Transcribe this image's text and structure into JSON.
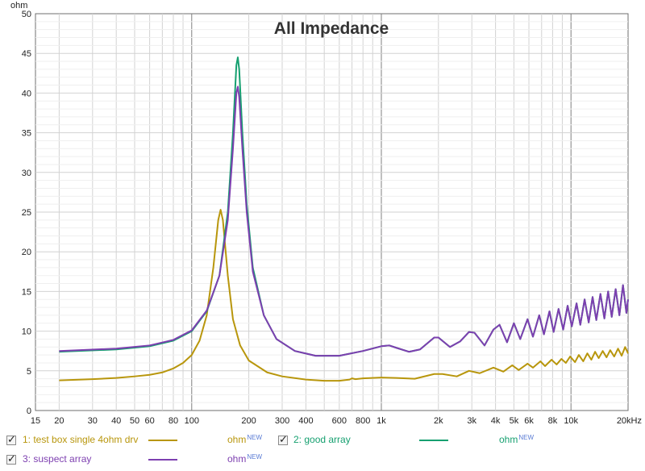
{
  "chart_data": {
    "type": "line",
    "title": "All Impedance",
    "ylabel": "ohm",
    "x_scale": "log",
    "xlim": [
      15,
      20000
    ],
    "ylim": [
      0,
      50
    ],
    "grid": true,
    "y_ticks": [
      "0",
      "5",
      "10",
      "15",
      "20",
      "25",
      "30",
      "35",
      "40",
      "45",
      "50"
    ],
    "x_ticks": [
      {
        "v": 15,
        "label": "15"
      },
      {
        "v": 20,
        "label": "20"
      },
      {
        "v": 30,
        "label": "30"
      },
      {
        "v": 40,
        "label": "40"
      },
      {
        "v": 50,
        "label": "50"
      },
      {
        "v": 60,
        "label": "60"
      },
      {
        "v": 80,
        "label": "80"
      },
      {
        "v": 100,
        "label": "100"
      },
      {
        "v": 200,
        "label": "200"
      },
      {
        "v": 300,
        "label": "300"
      },
      {
        "v": 400,
        "label": "400"
      },
      {
        "v": 600,
        "label": "600"
      },
      {
        "v": 800,
        "label": "800"
      },
      {
        "v": 1000,
        "label": "1k"
      },
      {
        "v": 2000,
        "label": "2k"
      },
      {
        "v": 3000,
        "label": "3k"
      },
      {
        "v": 4000,
        "label": "4k"
      },
      {
        "v": 5000,
        "label": "5k"
      },
      {
        "v": 6000,
        "label": "6k"
      },
      {
        "v": 8000,
        "label": "8k"
      },
      {
        "v": 10000,
        "label": "10k"
      },
      {
        "v": 20000,
        "label": "20kHz"
      }
    ],
    "series": [
      {
        "name": "1: test box single 4ohm drv",
        "color": "#b8960c",
        "unit": "ohm",
        "badge": "NEW",
        "points": [
          [
            20,
            3.8
          ],
          [
            30,
            3.95
          ],
          [
            40,
            4.1
          ],
          [
            50,
            4.3
          ],
          [
            60,
            4.5
          ],
          [
            70,
            4.8
          ],
          [
            80,
            5.3
          ],
          [
            90,
            6.0
          ],
          [
            100,
            7.0
          ],
          [
            110,
            8.8
          ],
          [
            120,
            12.0
          ],
          [
            130,
            18.0
          ],
          [
            138,
            24.0
          ],
          [
            142,
            25.3
          ],
          [
            146,
            24.0
          ],
          [
            155,
            17.0
          ],
          [
            165,
            11.5
          ],
          [
            180,
            8.2
          ],
          [
            200,
            6.3
          ],
          [
            250,
            4.8
          ],
          [
            300,
            4.3
          ],
          [
            400,
            3.9
          ],
          [
            500,
            3.75
          ],
          [
            600,
            3.75
          ],
          [
            680,
            3.9
          ],
          [
            700,
            4.05
          ],
          [
            730,
            3.95
          ],
          [
            800,
            4.05
          ],
          [
            1000,
            4.15
          ],
          [
            1200,
            4.1
          ],
          [
            1500,
            4.0
          ],
          [
            1900,
            4.6
          ],
          [
            2100,
            4.6
          ],
          [
            2500,
            4.3
          ],
          [
            2900,
            5.0
          ],
          [
            3300,
            4.7
          ],
          [
            3900,
            5.4
          ],
          [
            4400,
            4.9
          ],
          [
            4900,
            5.7
          ],
          [
            5300,
            5.1
          ],
          [
            5900,
            5.9
          ],
          [
            6300,
            5.4
          ],
          [
            6900,
            6.2
          ],
          [
            7300,
            5.6
          ],
          [
            7900,
            6.4
          ],
          [
            8400,
            5.8
          ],
          [
            8900,
            6.5
          ],
          [
            9400,
            6.0
          ],
          [
            9900,
            6.8
          ],
          [
            10500,
            6.1
          ],
          [
            11000,
            7.0
          ],
          [
            11600,
            6.2
          ],
          [
            12200,
            7.2
          ],
          [
            12800,
            6.4
          ],
          [
            13400,
            7.4
          ],
          [
            14000,
            6.6
          ],
          [
            14700,
            7.5
          ],
          [
            15400,
            6.7
          ],
          [
            16100,
            7.6
          ],
          [
            16900,
            6.8
          ],
          [
            17700,
            7.8
          ],
          [
            18500,
            6.9
          ],
          [
            19300,
            8.0
          ],
          [
            20000,
            7.2
          ]
        ]
      },
      {
        "name": "2: good array",
        "color": "#16a070",
        "unit": "ohm",
        "badge": "NEW",
        "points": [
          [
            20,
            7.4
          ],
          [
            40,
            7.7
          ],
          [
            60,
            8.1
          ],
          [
            80,
            8.8
          ],
          [
            100,
            10.0
          ],
          [
            120,
            12.5
          ],
          [
            140,
            17.0
          ],
          [
            155,
            25.0
          ],
          [
            165,
            35.0
          ],
          [
            172,
            43.5
          ],
          [
            175,
            44.5
          ],
          [
            178,
            43.0
          ],
          [
            185,
            35.0
          ],
          [
            195,
            26.0
          ],
          [
            210,
            18.0
          ],
          [
            240,
            12.0
          ],
          [
            280,
            9.0
          ],
          [
            350,
            7.5
          ],
          [
            450,
            6.9
          ],
          [
            600,
            6.9
          ],
          [
            800,
            7.5
          ],
          [
            1000,
            8.1
          ],
          [
            1100,
            8.2
          ],
          [
            1200,
            7.9
          ],
          [
            1400,
            7.4
          ],
          [
            1600,
            7.7
          ],
          [
            1900,
            9.2
          ],
          [
            2000,
            9.2
          ],
          [
            2300,
            8.0
          ],
          [
            2600,
            8.7
          ],
          [
            2900,
            9.9
          ],
          [
            3100,
            9.8
          ],
          [
            3500,
            8.2
          ],
          [
            3900,
            10.2
          ],
          [
            4200,
            10.8
          ],
          [
            4600,
            8.6
          ],
          [
            5000,
            11.0
          ],
          [
            5400,
            9.0
          ],
          [
            5900,
            11.5
          ],
          [
            6300,
            9.3
          ],
          [
            6800,
            12.0
          ],
          [
            7200,
            9.6
          ],
          [
            7700,
            12.5
          ],
          [
            8100,
            9.9
          ],
          [
            8600,
            12.8
          ],
          [
            9100,
            10.2
          ],
          [
            9600,
            13.2
          ],
          [
            10100,
            10.6
          ],
          [
            10700,
            13.5
          ],
          [
            11200,
            10.8
          ],
          [
            11800,
            14.0
          ],
          [
            12400,
            11.1
          ],
          [
            13000,
            14.3
          ],
          [
            13600,
            11.4
          ],
          [
            14300,
            14.7
          ],
          [
            15000,
            11.6
          ],
          [
            15700,
            15.0
          ],
          [
            16400,
            11.8
          ],
          [
            17200,
            15.3
          ],
          [
            18000,
            12.0
          ],
          [
            18800,
            15.8
          ],
          [
            19600,
            12.3
          ],
          [
            20000,
            14.0
          ]
        ]
      },
      {
        "name": "3: suspect array",
        "color": "#7d3fb0",
        "unit": "ohm",
        "badge": "NEW",
        "points": [
          [
            20,
            7.5
          ],
          [
            40,
            7.8
          ],
          [
            60,
            8.2
          ],
          [
            80,
            8.9
          ],
          [
            100,
            10.1
          ],
          [
            120,
            12.6
          ],
          [
            140,
            17.0
          ],
          [
            155,
            24.0
          ],
          [
            165,
            33.0
          ],
          [
            172,
            40.0
          ],
          [
            175,
            40.8
          ],
          [
            178,
            39.5
          ],
          [
            185,
            33.0
          ],
          [
            195,
            25.0
          ],
          [
            210,
            17.5
          ],
          [
            240,
            12.0
          ],
          [
            280,
            9.0
          ],
          [
            350,
            7.5
          ],
          [
            450,
            6.9
          ],
          [
            600,
            6.9
          ],
          [
            800,
            7.5
          ],
          [
            1000,
            8.1
          ],
          [
            1100,
            8.2
          ],
          [
            1200,
            7.9
          ],
          [
            1400,
            7.4
          ],
          [
            1600,
            7.7
          ],
          [
            1900,
            9.2
          ],
          [
            2000,
            9.2
          ],
          [
            2300,
            8.0
          ],
          [
            2600,
            8.7
          ],
          [
            2900,
            9.9
          ],
          [
            3100,
            9.8
          ],
          [
            3500,
            8.2
          ],
          [
            3900,
            10.2
          ],
          [
            4200,
            10.8
          ],
          [
            4600,
            8.6
          ],
          [
            5000,
            11.0
          ],
          [
            5400,
            9.0
          ],
          [
            5900,
            11.5
          ],
          [
            6300,
            9.3
          ],
          [
            6800,
            12.0
          ],
          [
            7200,
            9.6
          ],
          [
            7700,
            12.5
          ],
          [
            8100,
            9.9
          ],
          [
            8600,
            12.8
          ],
          [
            9100,
            10.2
          ],
          [
            9600,
            13.2
          ],
          [
            10100,
            10.6
          ],
          [
            10700,
            13.5
          ],
          [
            11200,
            10.8
          ],
          [
            11800,
            14.0
          ],
          [
            12400,
            11.1
          ],
          [
            13000,
            14.3
          ],
          [
            13600,
            11.4
          ],
          [
            14300,
            14.7
          ],
          [
            15000,
            11.6
          ],
          [
            15700,
            15.0
          ],
          [
            16400,
            11.8
          ],
          [
            17200,
            15.3
          ],
          [
            18000,
            12.0
          ],
          [
            18800,
            15.8
          ],
          [
            19600,
            12.3
          ],
          [
            20000,
            14.0
          ]
        ]
      }
    ]
  },
  "legend": {
    "items": [
      {
        "label": "1: test box single 4ohm drv",
        "unit": "ohm",
        "badge": "NEW",
        "color": "#b8960c",
        "checked": true
      },
      {
        "label": "2: good array",
        "unit": "ohm",
        "badge": "NEW",
        "color": "#16a070",
        "checked": true
      },
      {
        "label": "3: suspect array",
        "unit": "ohm",
        "badge": "NEW",
        "color": "#7d3fb0",
        "checked": true
      }
    ]
  }
}
